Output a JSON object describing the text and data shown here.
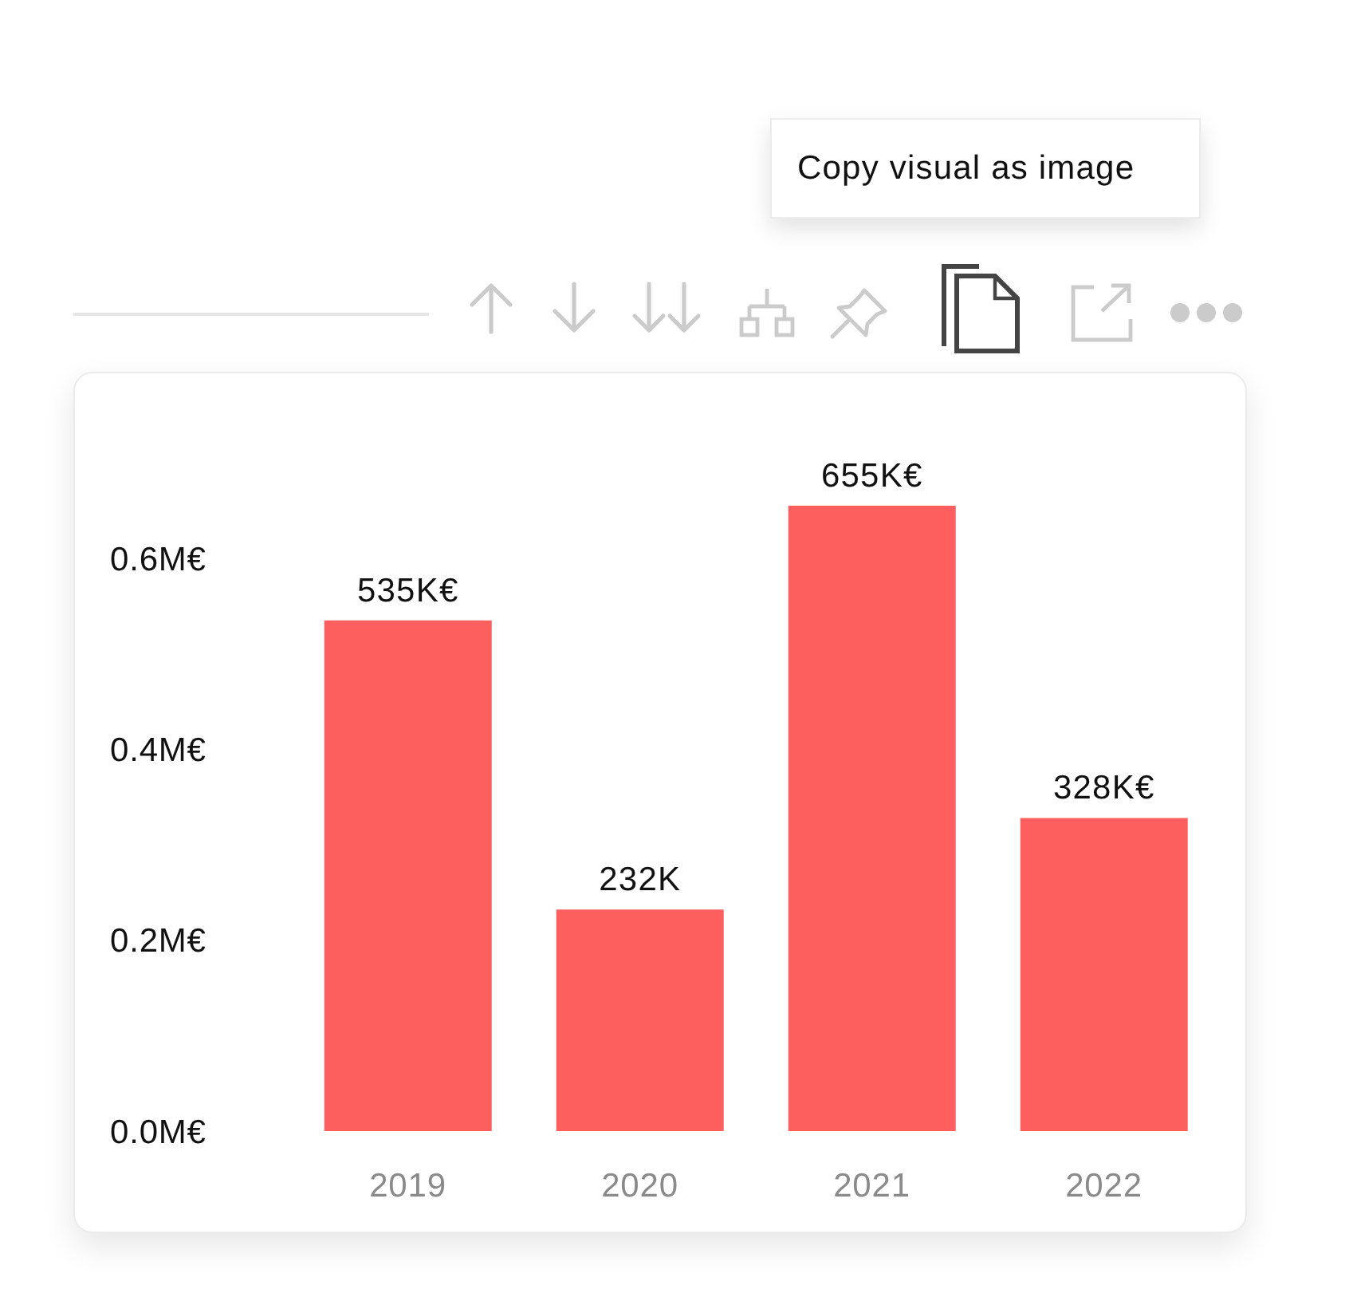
{
  "chart_data": {
    "type": "bar",
    "categories": [
      "2019",
      "2020",
      "2021",
      "2022"
    ],
    "values": [
      535000,
      232000,
      655000,
      328000
    ],
    "color": "#fd5f5f",
    "value_labels": [
      "535K€",
      "232K",
      "655K€",
      "328K€"
    ],
    "ylim": [
      0,
      655000
    ],
    "yticks": [
      {
        "value": 0,
        "label": "0.0M€"
      },
      {
        "value": 200000,
        "label": "0.2M€"
      },
      {
        "value": 400000,
        "label": "0.4M€"
      },
      {
        "value": 600000,
        "label": "0.6M€"
      }
    ],
    "annotations": [
      "Copy visual as image"
    ]
  }
}
